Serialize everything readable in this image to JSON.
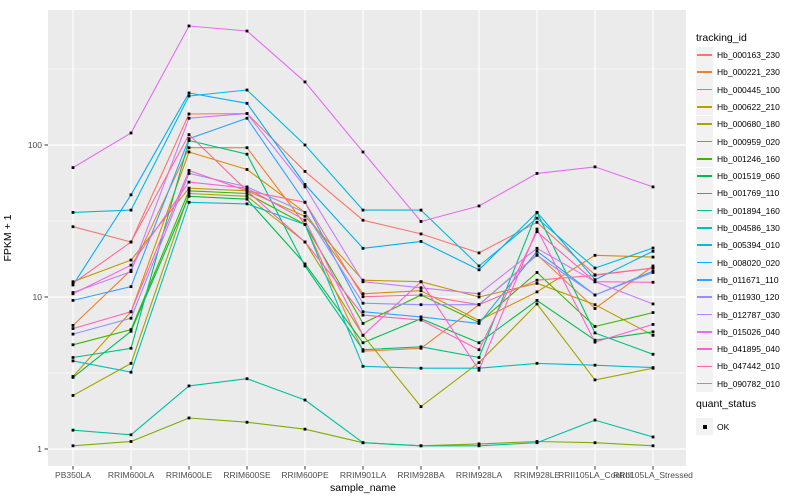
{
  "figure": {
    "y_axis": {
      "title": "FPKM + 1",
      "tick_labels": [
        "100",
        "10",
        "1"
      ],
      "tick_values": [
        100,
        10,
        1
      ]
    },
    "x_axis": {
      "title": "sample_name"
    },
    "legend": {
      "tracking_title": "tracking_id",
      "quant_title": "quant_status",
      "quant_ok_label": "OK"
    },
    "colors": {
      "panel_bg": "#EBEBEB",
      "grid_major": "#FFFFFF",
      "grid_minor": "#F5F5F5",
      "axis_text": "#4D4D4D",
      "tick_mark": "#333333",
      "marker": "#000000",
      "legend_key_bg": "#F2F2F2"
    }
  },
  "chart_data": {
    "type": "line",
    "title": "",
    "xlabel": "sample_name",
    "ylabel": "FPKM + 1",
    "y_scale": "log10",
    "ylim": [
      0.8,
      780
    ],
    "y_major_gridlines": [
      1,
      10,
      100
    ],
    "y_minor_gridlines": [
      3.162,
      31.62,
      316.2
    ],
    "legend_position": "right",
    "marker": "black-square",
    "quant_status": {
      "label": "OK",
      "marker": "black-square"
    },
    "categories": [
      "PB350LA",
      "RRIM600LA",
      "RRIM600LE",
      "RRIM600SE",
      "RRIM600PE",
      "RRIM901LA",
      "RRIM928BA",
      "RRIM928LA",
      "RRIM928LE",
      "RRII105LA_Control",
      "RRII105LA_Stressed"
    ],
    "series": [
      {
        "name": "Hb_000163_230",
        "color": "#F8766D",
        "values": [
          29,
          23,
          160,
          161,
          67,
          32,
          26,
          19.5,
          31,
          14,
          15.5
        ]
      },
      {
        "name": "Hb_000221_230",
        "color": "#EA8331",
        "values": [
          6.5,
          15,
          96,
          96,
          30,
          4.4,
          4.6,
          8.9,
          19,
          8.4,
          16
        ]
      },
      {
        "name": "Hb_000445_100",
        "color": "#D89000",
        "values": [
          3.0,
          8.0,
          90,
          69,
          36,
          10.5,
          11,
          7.0,
          10.8,
          18.8,
          18.3
        ]
      },
      {
        "name": "Hb_000622_210",
        "color": "#C09B00",
        "values": [
          12.6,
          17.5,
          52,
          50,
          34,
          12.9,
          12.6,
          10,
          12.3,
          8.9,
          5.6
        ]
      },
      {
        "name": "Hb_000680_180",
        "color": "#A3A500",
        "values": [
          2.25,
          3.66,
          48,
          46,
          23,
          5.6,
          1.9,
          3.7,
          9.0,
          2.85,
          3.4
        ]
      },
      {
        "name": "Hb_000959_020",
        "color": "#7CAE00",
        "values": [
          1.05,
          1.12,
          1.6,
          1.5,
          1.35,
          1.1,
          1.05,
          1.08,
          1.12,
          1.1,
          1.05
        ]
      },
      {
        "name": "Hb_001246_160",
        "color": "#39B600",
        "values": [
          4.85,
          6.1,
          50,
          48,
          30,
          6.7,
          10.3,
          6.8,
          14.5,
          6.4,
          7.9
        ]
      },
      {
        "name": "Hb_001519_060",
        "color": "#00BB4E",
        "values": [
          2.96,
          5.95,
          46,
          44,
          16.5,
          5.0,
          7.2,
          5.0,
          9.5,
          5.2,
          5.9
        ]
      },
      {
        "name": "Hb_001769_110",
        "color": "#00BF7D",
        "values": [
          4.0,
          4.6,
          107,
          87,
          16,
          4.5,
          4.7,
          4.0,
          36,
          5.8,
          4.2
        ]
      },
      {
        "name": "Hb_001894_160",
        "color": "#00C1A3",
        "values": [
          1.33,
          1.24,
          2.6,
          2.9,
          2.1,
          1.1,
          1.05,
          1.05,
          1.1,
          1.55,
          1.2
        ]
      },
      {
        "name": "Hb_004586_130",
        "color": "#00BFC4",
        "values": [
          3.8,
          3.2,
          42,
          41,
          30,
          3.5,
          3.4,
          3.4,
          3.66,
          3.56,
          3.43
        ]
      },
      {
        "name": "Hb_005394_010",
        "color": "#00BAE0",
        "values": [
          36,
          37.3,
          210,
          230,
          100,
          37.3,
          37.3,
          16,
          33,
          15.5,
          21
        ]
      },
      {
        "name": "Hb_008020_020",
        "color": "#00B0F6",
        "values": [
          12,
          47,
          220,
          188,
          55,
          20.9,
          23.2,
          15.1,
          36,
          13,
          20
        ]
      },
      {
        "name": "Hb_011671_110",
        "color": "#35A2FF",
        "values": [
          9.5,
          11.7,
          110,
          150,
          42,
          8.0,
          7.4,
          6.7,
          20,
          10.3,
          14.8
        ]
      },
      {
        "name": "Hb_011930_120",
        "color": "#9590FF",
        "values": [
          5.7,
          7.25,
          65,
          53,
          36,
          9.1,
          8.9,
          8.9,
          18.8,
          10.3,
          14.5
        ]
      },
      {
        "name": "Hb_012787_030",
        "color": "#C77CFF",
        "values": [
          10.7,
          14.7,
          150,
          161,
          53,
          12.6,
          11.5,
          10.5,
          20.9,
          12.6,
          9.0
        ]
      },
      {
        "name": "Hb_015026_040",
        "color": "#E76BF3",
        "values": [
          71,
          120,
          607,
          562,
          260,
          90,
          31.4,
          39.7,
          65,
          71.8,
          53
        ]
      },
      {
        "name": "Hb_041895_040",
        "color": "#FA62DB",
        "values": [
          10.5,
          16.2,
          57,
          52,
          32,
          5.6,
          12.6,
          3.3,
          28,
          5.05,
          6.6
        ]
      },
      {
        "name": "Hb_047442_010",
        "color": "#FF62BC",
        "values": [
          6.2,
          8.0,
          68,
          50,
          23,
          7.6,
          7.05,
          4.5,
          26.9,
          12.6,
          12.5
        ]
      },
      {
        "name": "Hb_090782_010",
        "color": "#FF6A98",
        "values": [
          12.3,
          23,
          117,
          50,
          42,
          10.05,
          10.3,
          8.9,
          12.9,
          13.9,
          15.5
        ]
      }
    ]
  }
}
